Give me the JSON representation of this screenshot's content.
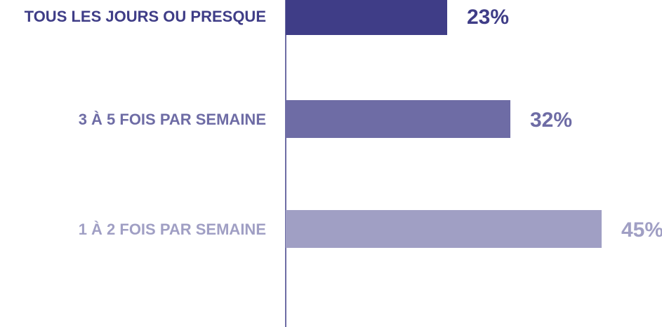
{
  "chart_data": {
    "type": "bar",
    "orientation": "horizontal",
    "categories": [
      "TOUS LES JOURS OU PRESQUE",
      "3 À 5 FOIS PAR SEMAINE",
      "1 À 2 FOIS PAR SEMAINE"
    ],
    "values": [
      23,
      32,
      45
    ],
    "value_labels": [
      "23%",
      "32%",
      "45%"
    ],
    "colors": [
      "#3f3d87",
      "#6e6ca5",
      "#a09fc4"
    ],
    "xlim": [
      0,
      50
    ]
  }
}
